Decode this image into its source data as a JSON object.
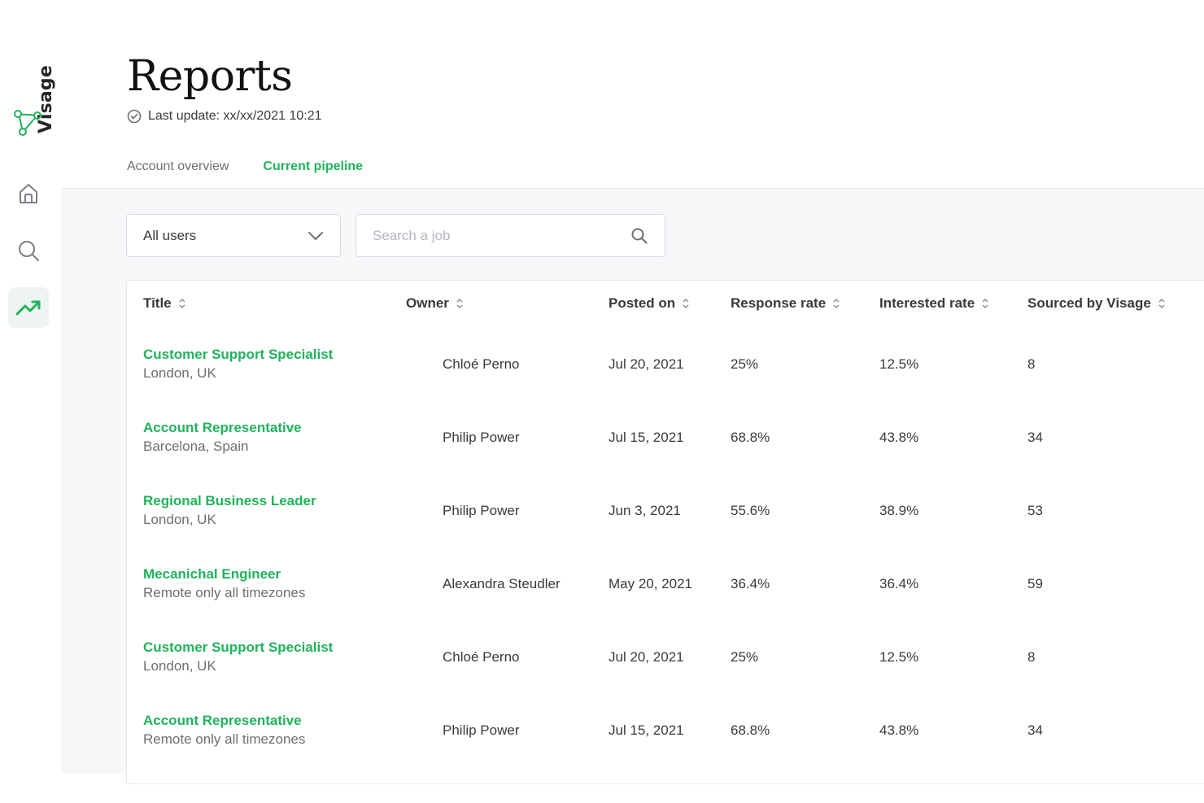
{
  "brand": {
    "name": "Visage",
    "logo_icon": "graph-nodes-icon",
    "accent": "#20b35c"
  },
  "nav": [
    {
      "icon": "home-icon"
    },
    {
      "icon": "search-icon"
    },
    {
      "icon": "trending-up-icon",
      "active": true
    }
  ],
  "header": {
    "title": "Reports",
    "last_update": "Last update: xx/xx/2021 10:21"
  },
  "tabs": [
    {
      "label": "Account overview",
      "active": false
    },
    {
      "label": "Current pipeline",
      "active": true
    }
  ],
  "filters": {
    "users_select": "All users",
    "search_placeholder": "Search a job"
  },
  "table": {
    "columns": [
      "Title",
      "Owner",
      "Posted on",
      "Response rate",
      "Interested rate",
      "Sourced by Visage"
    ],
    "rows": [
      {
        "title": "Customer Support Specialist",
        "location": "London, UK",
        "owner": "Chloé Perno",
        "posted": "Jul 20, 2021",
        "response": "25%",
        "interested": "12.5%",
        "sourced": "8"
      },
      {
        "title": "Account Representative",
        "location": "Barcelona, Spain",
        "owner": "Philip Power",
        "posted": "Jul 15, 2021",
        "response": "68.8%",
        "interested": "43.8%",
        "sourced": "34"
      },
      {
        "title": "Regional Business Leader",
        "location": "London, UK",
        "owner": "Philip Power",
        "posted": "Jun 3, 2021",
        "response": "55.6%",
        "interested": "38.9%",
        "sourced": "53"
      },
      {
        "title": "Mecanichal Engineer",
        "location": "Remote only all timezones",
        "owner": "Alexandra Steudler",
        "posted": "May 20, 2021",
        "response": "36.4%",
        "interested": "36.4%",
        "sourced": "59"
      },
      {
        "title": "Customer Support Specialist",
        "location": "London, UK",
        "owner": "Chloé Perno",
        "posted": "Jul 20, 2021",
        "response": "25%",
        "interested": "12.5%",
        "sourced": "8"
      },
      {
        "title": "Account Representative",
        "location": "Remote only all timezones",
        "owner": "Philip Power",
        "posted": "Jul 15, 2021",
        "response": "68.8%",
        "interested": "43.8%",
        "sourced": "34"
      }
    ]
  }
}
